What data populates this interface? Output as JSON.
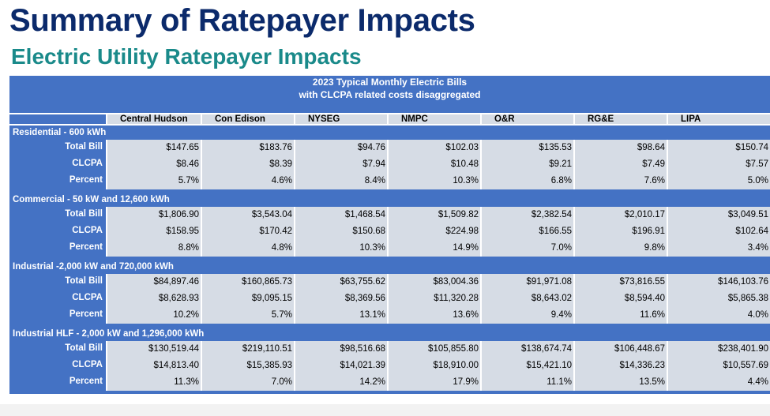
{
  "title": "Summary of Ratepayer Impacts",
  "subtitle": "Electric Utility Ratepayer Impacts",
  "table": {
    "header_line1": "2023 Typical Monthly Electric Bills",
    "header_line2": "with CLCPA related costs disaggregated",
    "columns": [
      "Central Hudson",
      "Con Edison",
      "NYSEG",
      "NMPC",
      "O&R",
      "RG&E",
      "LIPA"
    ],
    "row_labels": [
      "Total Bill",
      "CLCPA",
      "Percent"
    ],
    "sections": [
      {
        "name": "Residential  -  600 kWh",
        "rows": [
          [
            "$147.65",
            "$183.76",
            "$94.76",
            "$102.03",
            "$135.53",
            "$98.64",
            "$150.74"
          ],
          [
            "$8.46",
            "$8.39",
            "$7.94",
            "$10.48",
            "$9.21",
            "$7.49",
            "$7.57"
          ],
          [
            "5.7%",
            "4.6%",
            "8.4%",
            "10.3%",
            "6.8%",
            "7.6%",
            "5.0%"
          ]
        ]
      },
      {
        "name": "Commercial -  50 kW and 12,600 kWh",
        "rows": [
          [
            "$1,806.90",
            "$3,543.04",
            "$1,468.54",
            "$1,509.82",
            "$2,382.54",
            "$2,010.17",
            "$3,049.51"
          ],
          [
            "$158.95",
            "$170.42",
            "$150.68",
            "$224.98",
            "$166.55",
            "$196.91",
            "$102.64"
          ],
          [
            "8.8%",
            "4.8%",
            "10.3%",
            "14.9%",
            "7.0%",
            "9.8%",
            "3.4%"
          ]
        ]
      },
      {
        "name": "Industrial -2,000 kW and 720,000 kWh",
        "rows": [
          [
            "$84,897.46",
            "$160,865.73",
            "$63,755.62",
            "$83,004.36",
            "$91,971.08",
            "$73,816.55",
            "$146,103.76"
          ],
          [
            "$8,628.93",
            "$9,095.15",
            "$8,369.56",
            "$11,320.28",
            "$8,643.02",
            "$8,594.40",
            "$5,865.38"
          ],
          [
            "10.2%",
            "5.7%",
            "13.1%",
            "13.6%",
            "9.4%",
            "11.6%",
            "4.0%"
          ]
        ]
      },
      {
        "name": "Industrial HLF  -  2,000 kW and 1,296,000 kWh",
        "rows": [
          [
            "$130,519.44",
            "$219,110.51",
            "$98,516.68",
            "$105,855.80",
            "$138,674.74",
            "$106,448.67",
            "$238,401.90"
          ],
          [
            "$14,813.40",
            "$15,385.93",
            "$14,021.39",
            "$18,910.00",
            "$15,421.10",
            "$14,336.23",
            "$10,557.69"
          ],
          [
            "11.3%",
            "7.0%",
            "14.2%",
            "17.9%",
            "11.1%",
            "13.5%",
            "4.4%"
          ]
        ]
      }
    ]
  }
}
